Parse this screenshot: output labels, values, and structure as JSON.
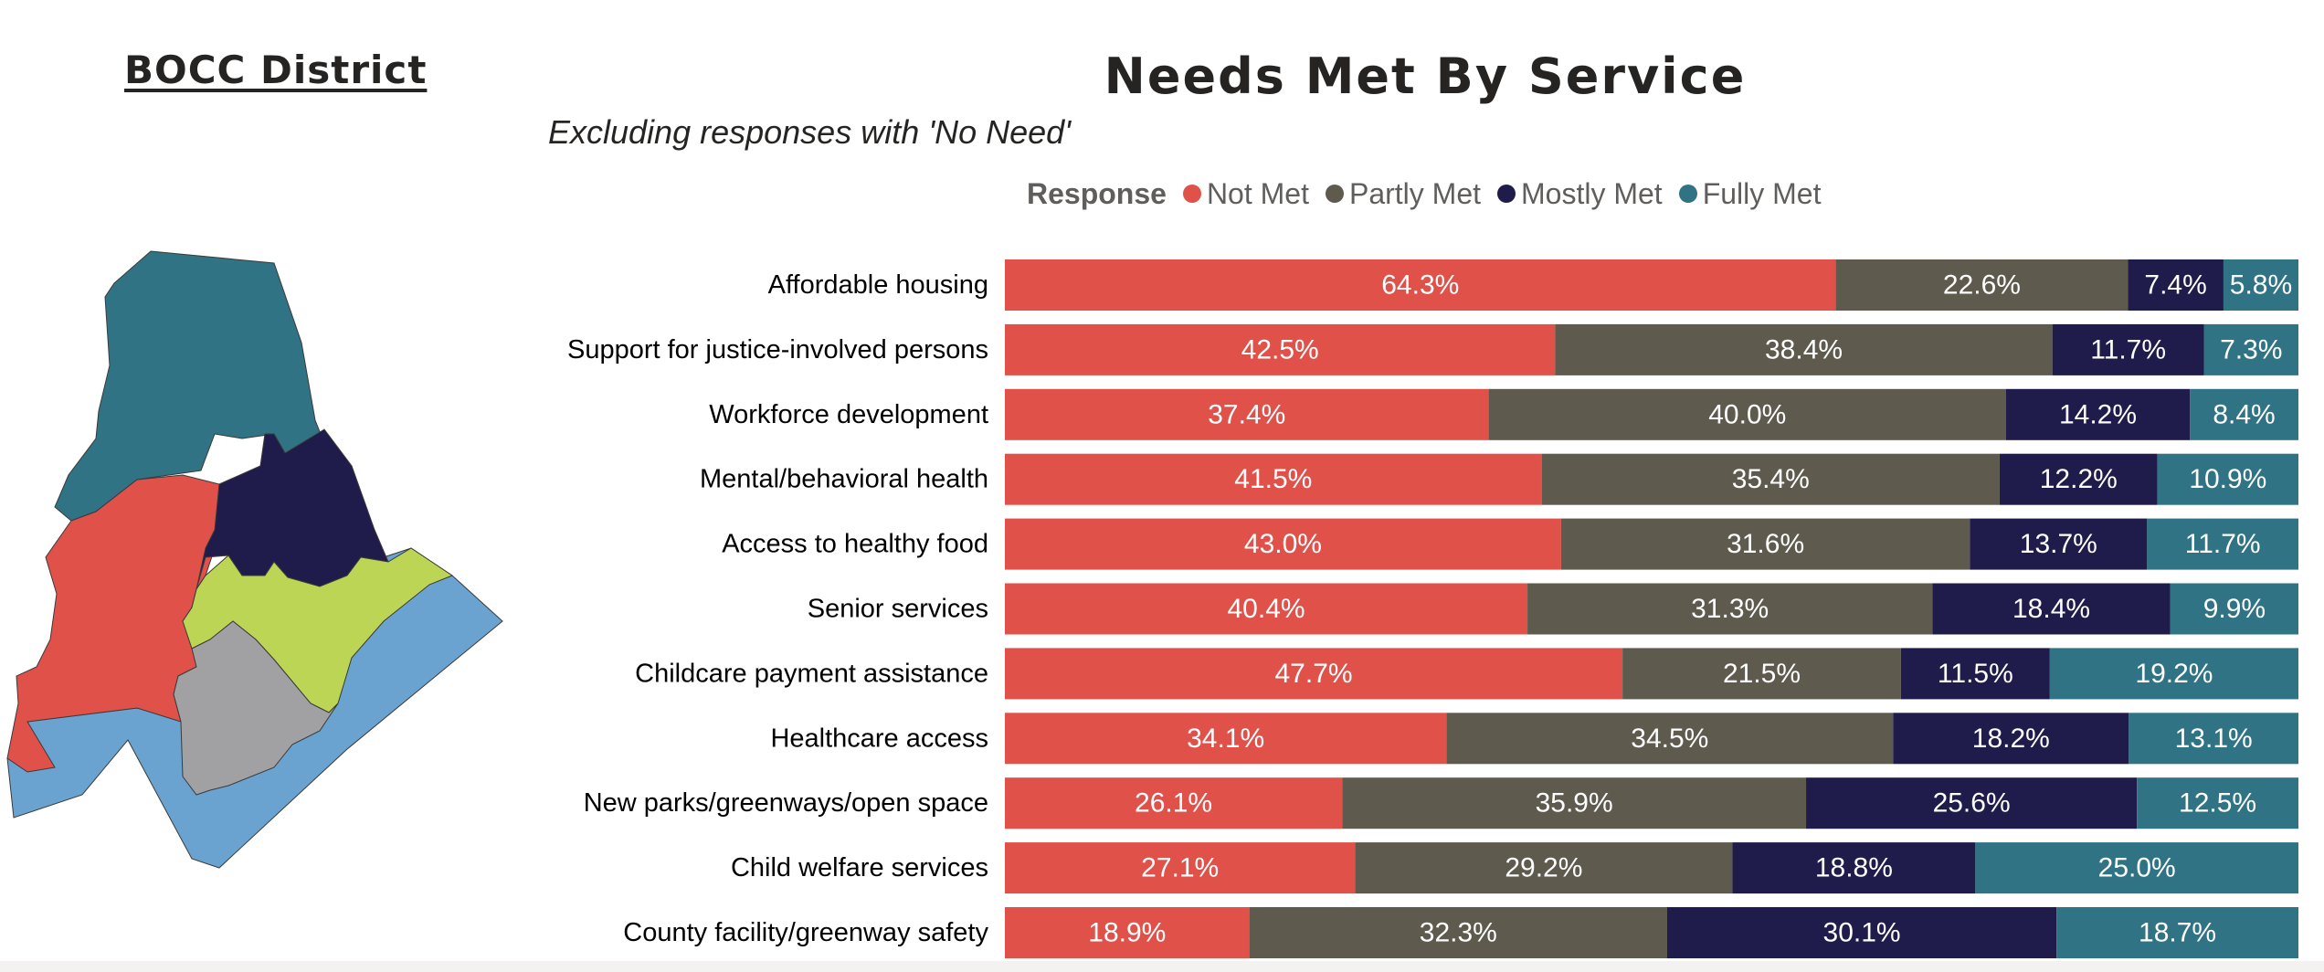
{
  "map": {
    "title": "BOCC District",
    "colors": {
      "north": "#2f7384",
      "northeast": "#1f1b4a",
      "west": "#e0514a",
      "green": "#bcd554",
      "center": "#a1a1a3",
      "south": "#6aa2d0"
    }
  },
  "chart_data": {
    "type": "bar",
    "orientation": "horizontal",
    "stacked": "100%",
    "title": "Needs Met By Service",
    "subtitle": "Excluding responses with 'No Need'",
    "legend": {
      "title": "Response",
      "placement": "top"
    },
    "categories": [
      "Affordable housing",
      "Support for justice-involved persons",
      "Workforce development",
      "Mental/behavioral health",
      "Access to healthy food",
      "Senior services",
      "Childcare payment assistance",
      "Healthcare access",
      "New parks/greenways/open space",
      "Child welfare services",
      "County facility/greenway safety"
    ],
    "series": [
      {
        "name": "Not Met",
        "color": "#e0514a",
        "values": [
          64.3,
          42.5,
          37.4,
          41.5,
          43.0,
          40.4,
          47.7,
          34.1,
          26.1,
          27.1,
          18.9
        ],
        "labels": [
          "64.3%",
          "42.5%",
          "37.4%",
          "41.5%",
          "43.0%",
          "40.4%",
          "47.7%",
          "34.1%",
          "26.1%",
          "27.1%",
          "18.9%"
        ]
      },
      {
        "name": "Partly Met",
        "color": "#5e5a4e",
        "values": [
          22.6,
          38.4,
          40.0,
          35.4,
          31.6,
          31.3,
          21.5,
          34.5,
          35.9,
          29.2,
          32.3
        ],
        "labels": [
          "22.6%",
          "38.4%",
          "40.0%",
          "35.4%",
          "31.6%",
          "31.3%",
          "21.5%",
          "34.5%",
          "35.9%",
          "29.2%",
          "32.3%"
        ]
      },
      {
        "name": "Mostly Met",
        "color": "#1f1b4a",
        "values": [
          7.4,
          11.7,
          14.2,
          12.2,
          13.7,
          18.4,
          11.5,
          18.2,
          25.6,
          18.8,
          30.1
        ],
        "labels": [
          "7.4%",
          "11.7%",
          "14.2%",
          "12.2%",
          "13.7%",
          "18.4%",
          "11.5%",
          "18.2%",
          "25.6%",
          "18.8%",
          "30.1%"
        ]
      },
      {
        "name": "Fully Met",
        "color": "#2f7384",
        "values": [
          5.8,
          7.3,
          8.4,
          10.9,
          11.7,
          9.9,
          19.2,
          13.1,
          12.5,
          25.0,
          18.7
        ],
        "labels": [
          "5.8%",
          "7.3%",
          "8.4%",
          "10.9%",
          "11.7%",
          "9.9%",
          "19.2%",
          "13.1%",
          "12.5%",
          "25.0%",
          "18.7%"
        ]
      }
    ]
  }
}
